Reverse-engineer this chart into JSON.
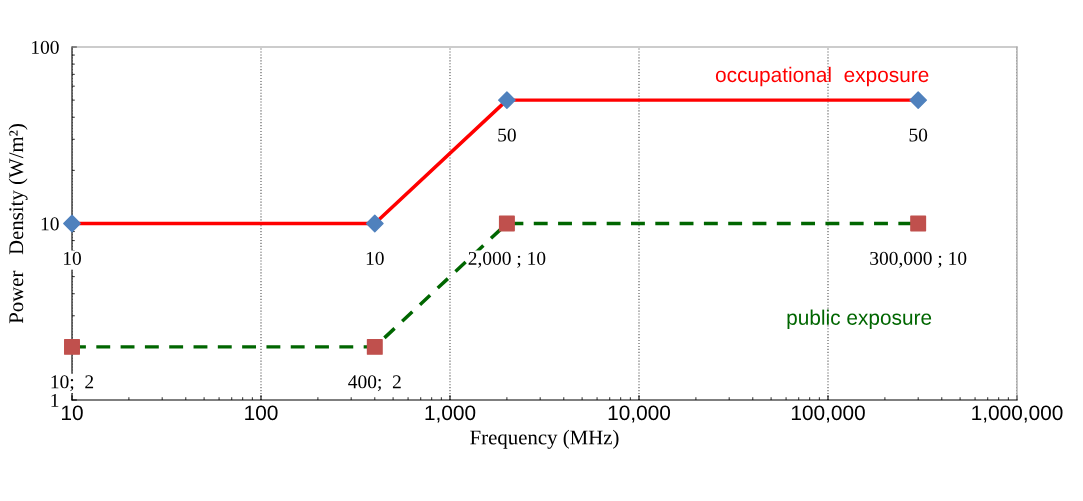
{
  "chart_data": {
    "type": "line",
    "xlabel": "Frequency (MHz)",
    "ylabel": "Power   Density (W/m²)",
    "log": "xy",
    "grid": "x",
    "legend": false,
    "xlim": [
      10,
      1000000
    ],
    "xticks": [
      {
        "value": 10,
        "label": "10"
      },
      {
        "value": 100,
        "label": "100"
      },
      {
        "value": 1000,
        "label": "1,000"
      },
      {
        "value": 10000,
        "label": "10,000"
      },
      {
        "value": 100000,
        "label": "100,000"
      },
      {
        "value": 1000000,
        "label": "1,000,000"
      }
    ],
    "ylim": [
      1,
      100
    ],
    "yticks": [
      1,
      10,
      100
    ],
    "series": [
      {
        "name": "occupational  exposure",
        "color": "#ff0000",
        "colors": [
          "#4f81bd",
          "#4f81bd",
          "#4f81bd",
          "#4f81bd"
        ],
        "marker": "diamond",
        "line_style": "solid",
        "x": [
          10,
          400,
          2000,
          300000
        ],
        "values": [
          10,
          10,
          50,
          50
        ],
        "value_labels": [
          "10",
          "10",
          "50",
          "50"
        ]
      },
      {
        "name": "public exposure",
        "color": "#006600",
        "colors": [
          "#c0504d",
          "#c0504d",
          "#c0504d",
          "#c0504d"
        ],
        "marker": "square",
        "line_style": "dashed",
        "x": [
          10,
          400,
          2000,
          300000
        ],
        "values": [
          2,
          2,
          10,
          10
        ],
        "value_labels": [
          "10;  2",
          "400;  2",
          "2,000 ; 10",
          "300,000 ; 10"
        ]
      }
    ]
  }
}
